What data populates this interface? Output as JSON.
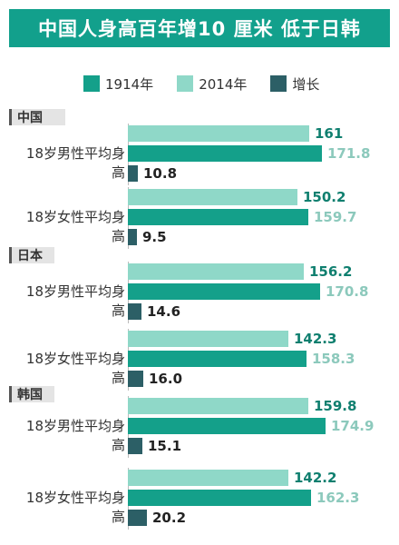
{
  "title": "中国人身高百年增10 厘米 低于日韩",
  "legend": {
    "y1914": "1914年",
    "y2014": "2014年",
    "growth": "增长"
  },
  "colors": {
    "banner": "#12a08c",
    "y1914": "#14a08a",
    "y2014": "#8fd8c8",
    "growth": "#2c5f66"
  },
  "chart_data": {
    "type": "bar",
    "orientation": "horizontal",
    "title": "中国人身高百年增10 厘米 低于日韩",
    "series_names": [
      "1914年",
      "2014年",
      "增长"
    ],
    "groups": [
      {
        "country": "中国",
        "rows": [
          {
            "label": "18岁男性平均身高",
            "y1914": 161,
            "y2014": 171.8,
            "growth": 10.8,
            "y1914_text": "161",
            "y2014_text": "171.8",
            "growth_text": "10.8"
          },
          {
            "label": "18岁女性平均身高",
            "y1914": 150.2,
            "y2014": 159.7,
            "growth": 9.5,
            "y1914_text": "150.2",
            "y2014_text": "159.7",
            "growth_text": "9.5"
          }
        ]
      },
      {
        "country": "日本",
        "rows": [
          {
            "label": "18岁男性平均身高",
            "y1914": 156.2,
            "y2014": 170.8,
            "growth": 14.6,
            "y1914_text": "156.2",
            "y2014_text": "170.8",
            "growth_text": "14.6"
          },
          {
            "label": "18岁女性平均身高",
            "y1914": 142.3,
            "y2014": 158.3,
            "growth": 16.0,
            "y1914_text": "142.3",
            "y2014_text": "158.3",
            "growth_text": "16.0"
          }
        ]
      },
      {
        "country": "韩国",
        "rows": [
          {
            "label": "18岁男性平均身高",
            "y1914": 159.8,
            "y2014": 174.9,
            "growth": 15.1,
            "y1914_text": "159.8",
            "y2014_text": "174.9",
            "growth_text": "15.1"
          },
          {
            "label": "18岁女性平均身高",
            "y1914": 142.2,
            "y2014": 162.3,
            "growth": 20.2,
            "y1914_text": "142.2",
            "y2014_text": "162.3",
            "growth_text": "20.2"
          }
        ]
      }
    ]
  }
}
